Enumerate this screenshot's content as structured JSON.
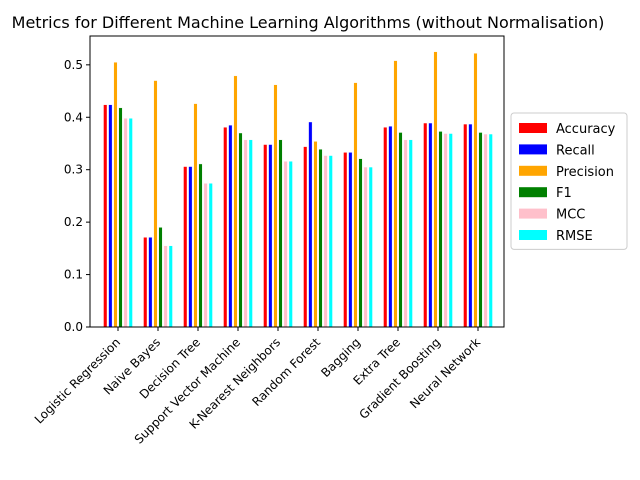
{
  "chart_data": {
    "type": "bar",
    "title": "Metrics for Different Machine Learning Algorithms (without Normalisation)",
    "xlabel": "",
    "ylabel": "",
    "ylim": [
      0,
      0.555
    ],
    "yticks": [
      0.0,
      0.1,
      0.2,
      0.3,
      0.4,
      0.5
    ],
    "ytick_labels": [
      "0.0",
      "0.1",
      "0.2",
      "0.3",
      "0.4",
      "0.5"
    ],
    "legend_position": "center-right outside",
    "grid": false,
    "categories": [
      "Logistic Regression",
      "Naive Bayes",
      "Decision Tree",
      "Support Vector Machine",
      "K-Nearest Neighbors",
      "Random Forest",
      "Bagging",
      "Extra Tree",
      "Gradient Boosting",
      "Neural Network"
    ],
    "series": [
      {
        "name": "Accuracy",
        "color": "#ff0000",
        "values": [
          0.424,
          0.171,
          0.306,
          0.381,
          0.348,
          0.344,
          0.333,
          0.381,
          0.389,
          0.387
        ]
      },
      {
        "name": "Recall",
        "color": "#0000ff",
        "values": [
          0.424,
          0.171,
          0.306,
          0.385,
          0.348,
          0.391,
          0.333,
          0.383,
          0.389,
          0.387
        ]
      },
      {
        "name": "Precision",
        "color": "#ffa500",
        "values": [
          0.505,
          0.47,
          0.426,
          0.479,
          0.462,
          0.354,
          0.466,
          0.508,
          0.525,
          0.522
        ]
      },
      {
        "name": "F1",
        "color": "#008000",
        "values": [
          0.418,
          0.19,
          0.311,
          0.37,
          0.357,
          0.339,
          0.321,
          0.371,
          0.373,
          0.371
        ]
      },
      {
        "name": "MCC",
        "color": "#ffc0cb",
        "values": [
          0.398,
          0.155,
          0.274,
          0.357,
          0.316,
          0.327,
          0.305,
          0.357,
          0.369,
          0.368
        ]
      },
      {
        "name": "RMSE",
        "color": "#00ffff",
        "values": [
          0.398,
          0.155,
          0.274,
          0.357,
          0.316,
          0.327,
          0.305,
          0.357,
          0.369,
          0.368
        ]
      }
    ]
  }
}
